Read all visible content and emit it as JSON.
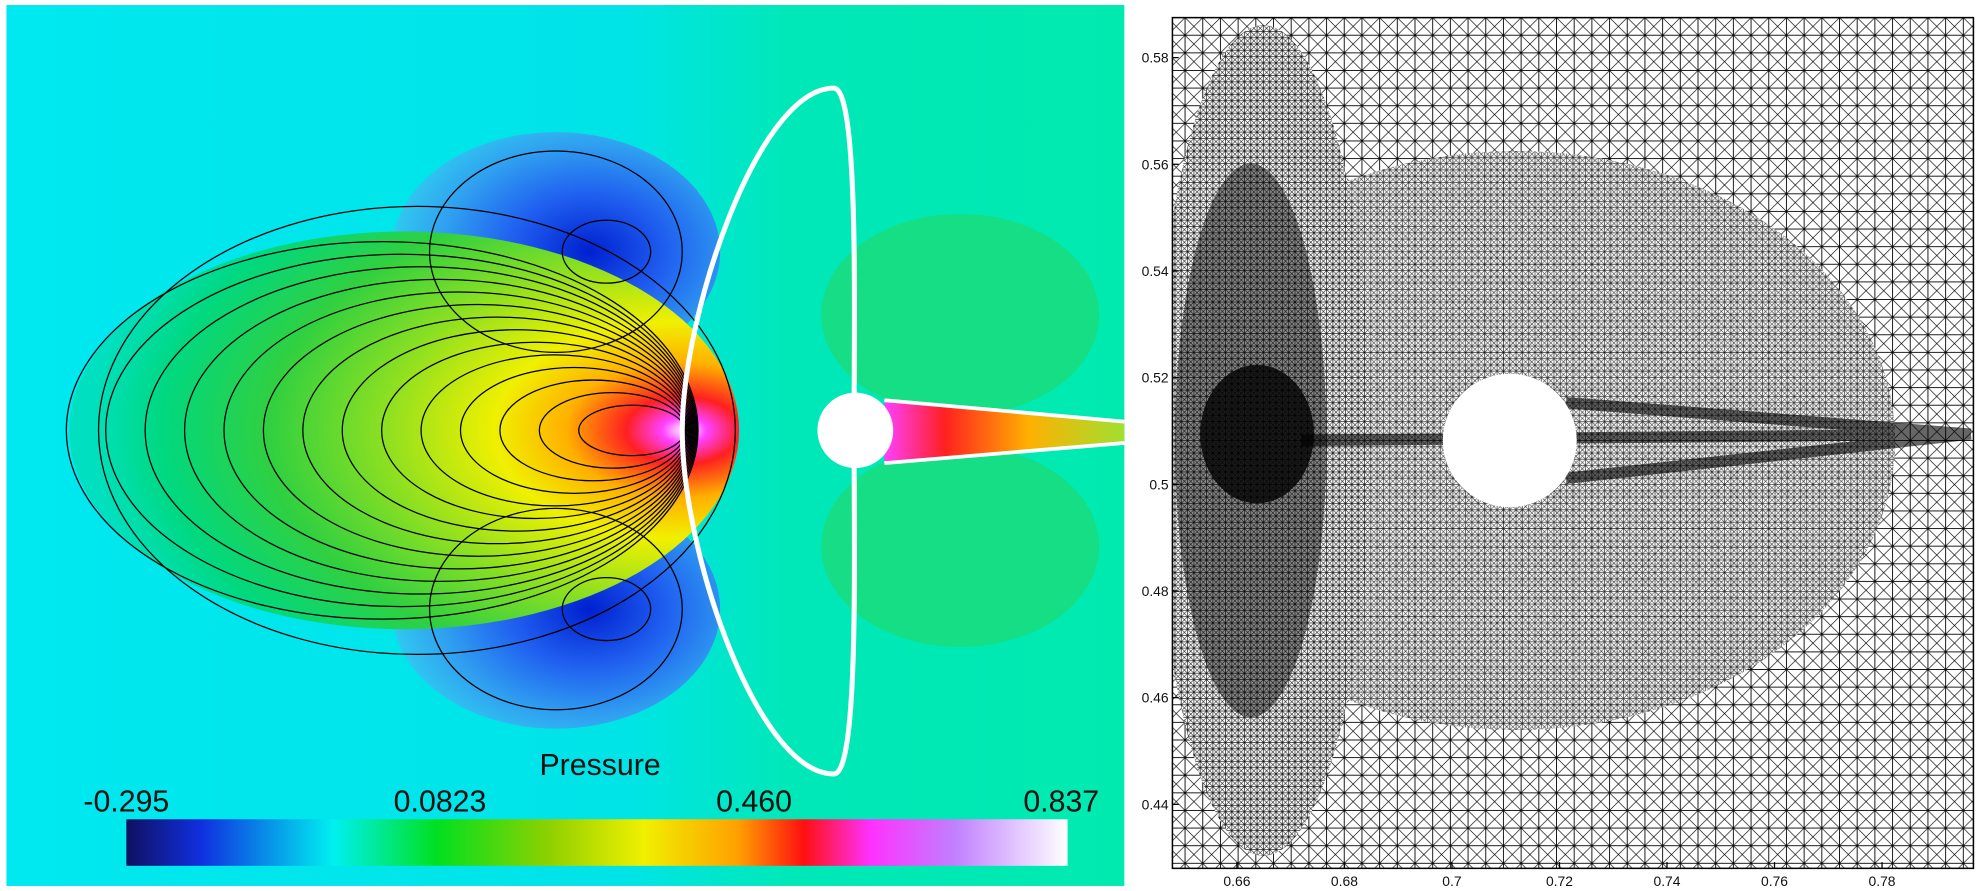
{
  "chart_data": [
    {
      "type": "contour",
      "colorbar": {
        "title": "Pressure",
        "lim": [
          -0.295,
          0.837
        ],
        "ticks": [
          -0.295,
          0.0823,
          {
            "value": 0.46,
            "label": "0.460"
          },
          0.837
        ]
      }
    },
    {
      "type": "mesh",
      "xlim": [
        0.648,
        0.797
      ],
      "ylim": [
        0.428,
        0.5875
      ],
      "xticks": [
        0.66,
        0.68,
        0.7,
        0.72,
        0.74,
        0.76,
        0.78
      ],
      "yticks": [
        0.44,
        0.46,
        0.48,
        0.5,
        0.52,
        0.54,
        0.56,
        0.58
      ]
    }
  ]
}
